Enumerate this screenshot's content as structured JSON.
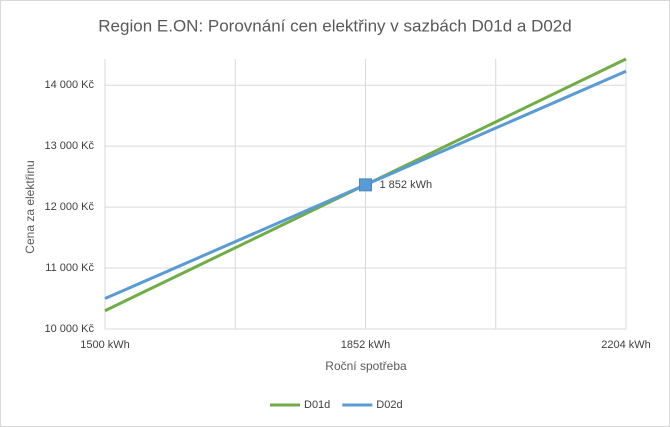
{
  "chart_data": {
    "type": "line",
    "title": "Region E.ON: Porovnání cen elektřiny v sazbách D01d a D02d",
    "x_label": "Roční spotřeba",
    "y_label": "Cena za elektřinu",
    "x": [
      1500,
      2204
    ],
    "series": [
      {
        "name": "D01d",
        "color": "#70ad47",
        "values": [
          10300,
          14430
        ]
      },
      {
        "name": "D02d",
        "color": "#5b9bd5",
        "values": [
          10500,
          14230
        ]
      }
    ],
    "annotation": {
      "x": 1852,
      "y": 12365,
      "label": "1 852 kWh",
      "color": "#5b9bd5"
    },
    "xlim": [
      1500,
      2204
    ],
    "xticks": [
      {
        "value": 1500,
        "label": "1500 kWh"
      },
      {
        "value": 1852,
        "label": "1852 kWh"
      },
      {
        "value": 2204,
        "label": "2204 kWh"
      }
    ],
    "xminor": [
      1676,
      2028
    ],
    "ylim": [
      10000,
      14430
    ],
    "yticks": [
      {
        "value": 10000,
        "label": "10 000 Kč"
      },
      {
        "value": 11000,
        "label": "11 000 Kč"
      },
      {
        "value": 12000,
        "label": "12 000 Kč"
      },
      {
        "value": 13000,
        "label": "13 000 Kč"
      },
      {
        "value": 14000,
        "label": "14 000 Kč"
      }
    ],
    "grid": true,
    "legend": "bottom"
  }
}
